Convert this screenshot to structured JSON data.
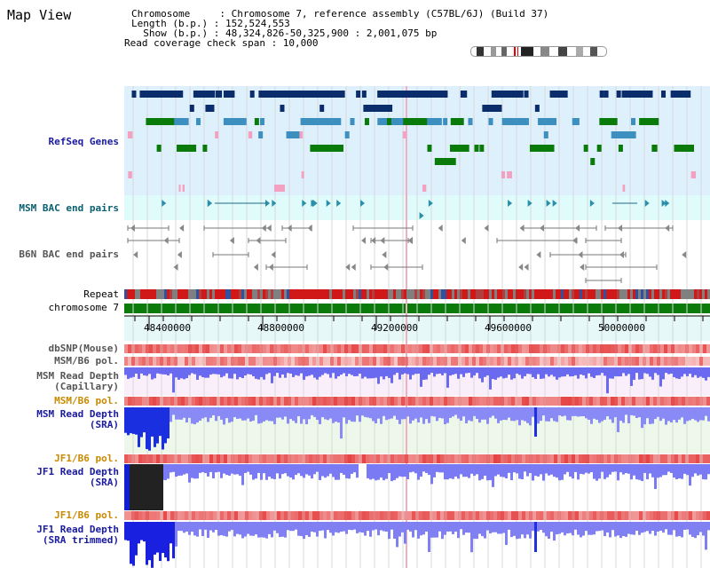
{
  "header": {
    "title": "Map View",
    "info_lines": [
      "Chromosome     : Chromosome 7, reference assembly (C57BL/6J) (Build 37)",
      "Length (b.p.) : 152,524,553",
      "  Show (b.p.) : 48,324,826-50,325,900 : 2,001,075 bp",
      "Read coverage check span : 10,000"
    ]
  },
  "tracks": {
    "refseq": "RefSeq Genes",
    "msm_bac": "MSM BAC end pairs",
    "b6n_bac": "B6N BAC end pairs",
    "repeat": "Repeat",
    "chromosome": "chromosome 7",
    "dbsnp": "dbSNP(Mouse)",
    "msm_pol_1": "MSM/B6 pol.",
    "msm_depth_cap": "MSM Read Depth\n(Capillary)",
    "msm_pol_2": "MSM/B6 pol.",
    "msm_depth_sra": "MSM Read Depth\n(SRA)",
    "jf1_pol_1": "JF1/B6 pol.",
    "jf1_depth_sra": "JF1 Read Depth\n(SRA)",
    "jf1_pol_2": "JF1/B6 pol.",
    "jf1_depth_trim": "JF1 Read Depth\n(SRA trimmed)"
  },
  "axis": {
    "ticks": [
      "48400000",
      "48800000",
      "49200000",
      "49600000",
      "50000000"
    ]
  },
  "colors": {
    "gene_dark": "#0b2d6b",
    "gene_mid": "#3d8fbf",
    "gene_green": "#0a7a0a",
    "snp_pink": "#f4a0c0",
    "depth_blue": "#4a4af0",
    "pol_red": "#e04040"
  }
}
